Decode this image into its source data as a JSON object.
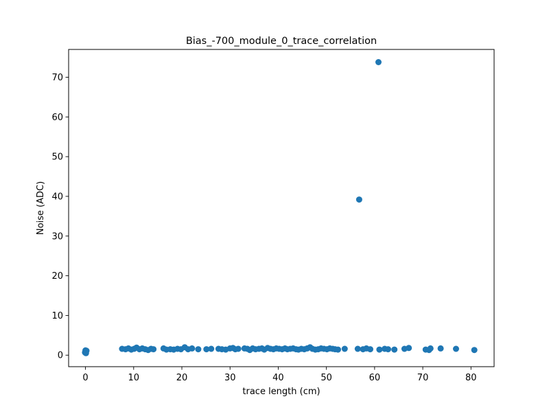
{
  "chart_data": {
    "type": "scatter",
    "title": "Bias_-700_module_0_trace_correlation",
    "xlabel": "trace length (cm)",
    "ylabel": "Noise (ADC)",
    "xlim": [
      -3.5,
      84.8
    ],
    "ylim": [
      -2.9,
      77.0
    ],
    "xticks": [
      0,
      10,
      20,
      30,
      40,
      50,
      60,
      70,
      80
    ],
    "yticks": [
      0,
      10,
      20,
      30,
      40,
      50,
      60,
      70
    ],
    "grid": false,
    "legend": "none",
    "marker_color": "#1f77b4",
    "series": [
      {
        "points": [
          [
            0.0,
            0.6
          ],
          [
            0.0,
            0.8
          ],
          [
            0.0,
            1.0
          ],
          [
            0.0,
            1.2
          ],
          [
            0.1,
            0.9
          ],
          [
            0.1,
            0.5
          ],
          [
            0.2,
            1.1
          ],
          [
            -0.1,
            0.7
          ],
          [
            7.6,
            1.6
          ],
          [
            8.3,
            1.5
          ],
          [
            8.9,
            1.7
          ],
          [
            9.5,
            1.4
          ],
          [
            10.1,
            1.6
          ],
          [
            10.6,
            1.9
          ],
          [
            11.2,
            1.5
          ],
          [
            11.8,
            1.7
          ],
          [
            12.4,
            1.5
          ],
          [
            13.0,
            1.3
          ],
          [
            13.6,
            1.6
          ],
          [
            14.1,
            1.5
          ],
          [
            16.2,
            1.7
          ],
          [
            16.8,
            1.4
          ],
          [
            17.6,
            1.5
          ],
          [
            18.3,
            1.4
          ],
          [
            19.1,
            1.6
          ],
          [
            19.8,
            1.5
          ],
          [
            20.6,
            2.0
          ],
          [
            21.3,
            1.5
          ],
          [
            22.1,
            1.7
          ],
          [
            23.4,
            1.5
          ],
          [
            25.1,
            1.5
          ],
          [
            26.1,
            1.6
          ],
          [
            27.6,
            1.6
          ],
          [
            28.3,
            1.5
          ],
          [
            29.1,
            1.4
          ],
          [
            30.0,
            1.7
          ],
          [
            30.6,
            1.8
          ],
          [
            31.1,
            1.5
          ],
          [
            31.7,
            1.6
          ],
          [
            33.0,
            1.7
          ],
          [
            33.6,
            1.6
          ],
          [
            34.1,
            1.3
          ],
          [
            34.7,
            1.7
          ],
          [
            35.3,
            1.5
          ],
          [
            36.0,
            1.6
          ],
          [
            36.6,
            1.7
          ],
          [
            37.1,
            1.4
          ],
          [
            37.8,
            1.8
          ],
          [
            38.4,
            1.6
          ],
          [
            39.0,
            1.5
          ],
          [
            39.6,
            1.7
          ],
          [
            40.2,
            1.6
          ],
          [
            40.8,
            1.5
          ],
          [
            41.4,
            1.7
          ],
          [
            41.9,
            1.5
          ],
          [
            42.5,
            1.6
          ],
          [
            43.1,
            1.7
          ],
          [
            43.7,
            1.5
          ],
          [
            44.2,
            1.4
          ],
          [
            44.8,
            1.6
          ],
          [
            45.4,
            1.5
          ],
          [
            46.0,
            1.7
          ],
          [
            46.6,
            2.0
          ],
          [
            47.1,
            1.6
          ],
          [
            47.7,
            1.4
          ],
          [
            48.3,
            1.5
          ],
          [
            48.9,
            1.7
          ],
          [
            49.5,
            1.6
          ],
          [
            50.1,
            1.5
          ],
          [
            50.7,
            1.7
          ],
          [
            51.3,
            1.6
          ],
          [
            51.8,
            1.5
          ],
          [
            52.4,
            1.4
          ],
          [
            53.8,
            1.6
          ],
          [
            56.5,
            1.6
          ],
          [
            57.6,
            1.5
          ],
          [
            58.3,
            1.7
          ],
          [
            59.1,
            1.5
          ],
          [
            61.0,
            1.4
          ],
          [
            62.1,
            1.6
          ],
          [
            62.8,
            1.5
          ],
          [
            64.1,
            1.4
          ],
          [
            66.2,
            1.6
          ],
          [
            67.1,
            1.8
          ],
          [
            70.6,
            1.4
          ],
          [
            71.3,
            1.3
          ],
          [
            71.6,
            1.7
          ],
          [
            73.7,
            1.7
          ],
          [
            76.9,
            1.6
          ],
          [
            80.7,
            1.3
          ],
          [
            56.8,
            39.2
          ],
          [
            60.8,
            73.8
          ]
        ]
      }
    ]
  }
}
